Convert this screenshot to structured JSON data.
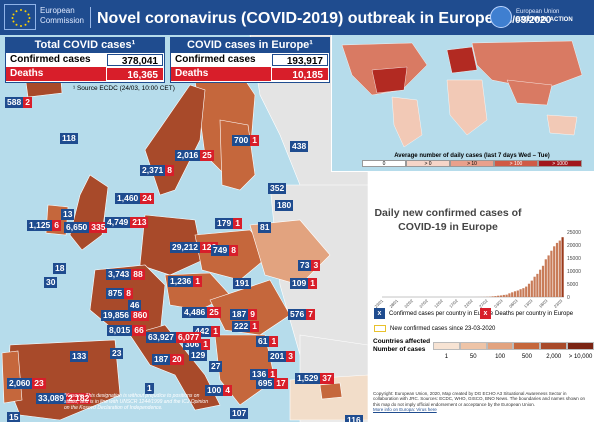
{
  "header": {
    "org_line1": "European",
    "org_line2": "Commission",
    "title": "Novel coronavirus (COVID-2019) outbreak in Europe",
    "date": "| 24/03/2020",
    "partner_line1": "European Union",
    "partner_line2": "EXTERNAL ACTION"
  },
  "totals": {
    "title": "Total COVID cases¹",
    "confirmed_label": "Confirmed cases",
    "confirmed_value": "378,041",
    "deaths_label": "Deaths",
    "deaths_value": "16,365"
  },
  "europe": {
    "title": "COVID cases in Europe¹",
    "confirmed_label": "Confirmed cases",
    "confirmed_value": "193,917",
    "deaths_label": "Deaths",
    "deaths_value": "10,185"
  },
  "source": "¹ Source ECDC (24/03, 10:00 CET)",
  "countries": [
    {
      "name": "Iceland",
      "cases": "588",
      "deaths": "2"
    },
    {
      "name": "Faroe Islands (DK)",
      "cases": "118",
      "deaths": ""
    },
    {
      "name": "Finland",
      "cases": "700",
      "deaths": "1"
    },
    {
      "name": "Russia",
      "cases": "438",
      "deaths": ""
    },
    {
      "name": "Norway",
      "cases": "2,371",
      "deaths": "8"
    },
    {
      "name": "Sweden",
      "cases": "2,016",
      "deaths": "25"
    },
    {
      "name": "Estonia",
      "cases": "352",
      "deaths": ""
    },
    {
      "name": "Latvia",
      "cases": "180",
      "deaths": ""
    },
    {
      "name": "Denmark",
      "cases": "1,460",
      "deaths": "24"
    },
    {
      "name": "Lithuania",
      "cases": "179",
      "deaths": "1"
    },
    {
      "name": "Belarus",
      "cases": "81",
      "deaths": ""
    },
    {
      "name": "Isle of Man",
      "cases": "13",
      "deaths": ""
    },
    {
      "name": "Ireland",
      "cases": "1,125",
      "deaths": "6"
    },
    {
      "name": "United Kingdom",
      "cases": "6,650",
      "deaths": "335"
    },
    {
      "name": "Netherlands",
      "cases": "4,749",
      "deaths": "213"
    },
    {
      "name": "Germany",
      "cases": "29,212",
      "deaths": "126"
    },
    {
      "name": "Poland",
      "cases": "749",
      "deaths": "8"
    },
    {
      "name": "Ukraine",
      "cases": "73",
      "deaths": "3"
    },
    {
      "name": "Jersey",
      "cases": "18",
      "deaths": ""
    },
    {
      "name": "Guernsey",
      "cases": "30",
      "deaths": ""
    },
    {
      "name": "Belgium",
      "cases": "3,743",
      "deaths": "88"
    },
    {
      "name": "Czech Republic",
      "cases": "1,236",
      "deaths": "1"
    },
    {
      "name": "Luxembourg",
      "cases": "875",
      "deaths": "8"
    },
    {
      "name": "Slovakia",
      "cases": "191",
      "deaths": ""
    },
    {
      "name": "Moldova",
      "cases": "109",
      "deaths": "1"
    },
    {
      "name": "France",
      "cases": "19,856",
      "deaths": "860"
    },
    {
      "name": "Austria",
      "cases": "4,486",
      "deaths": "25"
    },
    {
      "name": "Hungary",
      "cases": "187",
      "deaths": "9"
    },
    {
      "name": "Romania",
      "cases": "576",
      "deaths": "7"
    },
    {
      "name": "Liechtenstein",
      "cases": "46",
      "deaths": ""
    },
    {
      "name": "Switzerland",
      "cases": "8,015",
      "deaths": "66"
    },
    {
      "name": "Slovenia",
      "cases": "442",
      "deaths": "1"
    },
    {
      "name": "Croatia",
      "cases": "306",
      "deaths": "1"
    },
    {
      "name": "Serbia",
      "cases": "222",
      "deaths": "1"
    },
    {
      "name": "Bosnia and Herzegovina",
      "cases": "129",
      "deaths": ""
    },
    {
      "name": "Italy",
      "cases": "63,927",
      "deaths": "6,077"
    },
    {
      "name": "San Marino",
      "cases": "187",
      "deaths": "20"
    },
    {
      "name": "Monaco",
      "cases": "23",
      "deaths": ""
    },
    {
      "name": "Kosovo*",
      "cases": "61",
      "deaths": "1"
    },
    {
      "name": "Bulgaria",
      "cases": "201",
      "deaths": "3"
    },
    {
      "name": "Montenegro",
      "cases": "27",
      "deaths": ""
    },
    {
      "name": "North Macedonia",
      "cases": "136",
      "deaths": "1"
    },
    {
      "name": "Albania",
      "cases": "100",
      "deaths": "4"
    },
    {
      "name": "Greece",
      "cases": "695",
      "deaths": "17"
    },
    {
      "name": "Turkey",
      "cases": "1,529",
      "deaths": "37"
    },
    {
      "name": "Portugal",
      "cases": "2,060",
      "deaths": "23"
    },
    {
      "name": "Andorra",
      "cases": "133",
      "deaths": ""
    },
    {
      "name": "Spain",
      "cases": "33,089",
      "deaths": "2,182"
    },
    {
      "name": "Vatican City",
      "cases": "1",
      "deaths": ""
    },
    {
      "name": "Gibraltar (UK)",
      "cases": "15",
      "deaths": ""
    },
    {
      "name": "Malta",
      "cases": "107",
      "deaths": ""
    },
    {
      "name": "Cyprus",
      "cases": "116",
      "deaths": ""
    }
  ],
  "disclaimer": "*Kosovo: This designation is without prejudice to positions on status, and is in line with UNSCR 1244/1999 and the ICJ Opinion on the Kosovo Declaration of Independence.",
  "world_map": {
    "legend_title": "Average number of daily cases (last 7 days Wed – Tue)",
    "legend_classes": [
      "0",
      "> 0",
      "> 10",
      "> 100",
      "> 1000"
    ]
  },
  "chart_data": {
    "type": "bar",
    "title": "Daily new confirmed cases of COVID-19 in Europe",
    "ylim": [
      0,
      25000
    ],
    "yticks": [
      "0",
      "5000",
      "10000",
      "15000",
      "20000",
      "25000"
    ],
    "xtick_labels": [
      "23/01",
      "28/01",
      "02/02",
      "07/02",
      "12/02",
      "17/02",
      "22/02",
      "27/02",
      "03/03",
      "08/03",
      "13/03",
      "18/03",
      "23/03"
    ],
    "values": [
      0,
      0,
      0,
      0,
      0,
      0,
      0,
      0,
      0,
      0,
      0,
      0,
      0,
      0,
      0,
      0,
      0,
      0,
      0,
      0,
      0,
      0,
      0,
      0,
      0,
      0,
      0,
      0,
      0,
      0,
      0,
      0,
      0,
      5,
      15,
      25,
      40,
      70,
      110,
      250,
      350,
      500,
      600,
      800,
      900,
      1400,
      1800,
      2200,
      2500,
      3000,
      3400,
      4000,
      5100,
      6300,
      7800,
      8900,
      10500,
      12000,
      14500,
      16000,
      17800,
      19500,
      20800,
      21700,
      23000
    ]
  },
  "legend": {
    "cases_label": "Confirmed cases per country in Europe",
    "cases_symbol": "x",
    "deaths_label": "Deaths per country in Europe",
    "deaths_symbol": "x",
    "new_label": "New confirmed cases since 23-03-2020"
  },
  "countries_affected": {
    "label_line1": "Countries affected",
    "label_line2": "Number of cases",
    "ticks": [
      "1",
      "50",
      "100",
      "500",
      "2,000",
      "> 10,000"
    ]
  },
  "copyright": "Copyright: European Union, 2020, Map created by DG ECHO A3 Situational Awareness Sector in collaboration with JRC. Sources: ECDC, WHO, GISCO, BNO News. The boundaries and names shown on this map do not imply official endorsement or acceptance by the European Union.",
  "link": "More info on Europa: Virus here",
  "colors": {
    "brand_blue": "#1f4c8f",
    "death_red": "#d81e2a",
    "chart_bar": "#c87b58",
    "sea": "#b6dceb"
  }
}
